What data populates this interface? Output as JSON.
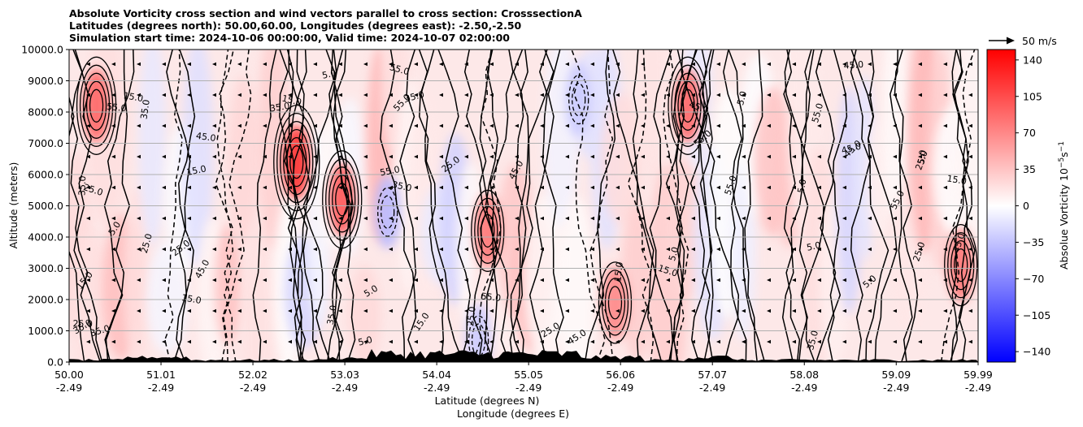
{
  "chart_data": {
    "type": "heatmap",
    "title_lines": [
      "Absolute Vorticity cross section and wind vectors parallel to cross section: CrosssectionA",
      "Latitudes (degrees north): 50.00,60.00, Longitudes (degrees east): -2.50,-2.50",
      "Simulation start time: 2024-10-06 00:00:00, Valid time: 2024-10-07 02:00:00"
    ],
    "ylabel": "Altitude (meters)",
    "xlabel_lines": [
      "Latitude (degrees N)",
      "Longitude (degrees E)"
    ],
    "y_ticks": [
      "0.0",
      "1000.0",
      "2000.0",
      "3000.0",
      "4000.0",
      "5000.0",
      "6000.0",
      "7000.0",
      "8000.0",
      "9000.0",
      "10000.0"
    ],
    "ylim": [
      0,
      10000
    ],
    "x_ticks": [
      {
        "lat": "50.00",
        "lon": "-2.49"
      },
      {
        "lat": "51.01",
        "lon": "-2.49"
      },
      {
        "lat": "52.02",
        "lon": "-2.49"
      },
      {
        "lat": "53.03",
        "lon": "-2.49"
      },
      {
        "lat": "54.04",
        "lon": "-2.49"
      },
      {
        "lat": "55.05",
        "lon": "-2.49"
      },
      {
        "lat": "56.06",
        "lon": "-2.49"
      },
      {
        "lat": "57.07",
        "lon": "-2.49"
      },
      {
        "lat": "58.08",
        "lon": "-2.49"
      },
      {
        "lat": "59.09",
        "lon": "-2.49"
      },
      {
        "lat": "59.99",
        "lon": "-2.49"
      }
    ],
    "grid": "horizontal",
    "colorbar": {
      "label": "Absolue Vorticity 10^-5 s^-1",
      "ticks": [
        "140",
        "105",
        "70",
        "35",
        "0",
        "−35",
        "−70",
        "−105",
        "−140"
      ],
      "range": [
        -150,
        150
      ],
      "colormap": [
        "#0000ff",
        "#ffffff",
        "#ff0000"
      ]
    },
    "quiver_key": "50 m/s",
    "contour_labels": [
      "5.0",
      "15.0",
      "25.0",
      "35.0",
      "45.0",
      "55.0"
    ],
    "features": [
      {
        "lat": 50.3,
        "alt": 8200,
        "vorticity": 90
      },
      {
        "lat": 52.5,
        "alt": 6400,
        "vorticity": 120
      },
      {
        "lat": 53.0,
        "alt": 5200,
        "vorticity": 100
      },
      {
        "lat": 54.6,
        "alt": 4200,
        "vorticity": 80
      },
      {
        "lat": 53.5,
        "alt": 4800,
        "vorticity": -40
      },
      {
        "lat": 55.6,
        "alt": 8400,
        "vorticity": -30
      },
      {
        "lat": 56.0,
        "alt": 1900,
        "vorticity": 70
      },
      {
        "lat": 56.8,
        "alt": 8200,
        "vorticity": 90
      },
      {
        "lat": 59.8,
        "alt": 3100,
        "vorticity": 80
      },
      {
        "lat": 54.5,
        "alt": 700,
        "vorticity": -30
      }
    ]
  }
}
